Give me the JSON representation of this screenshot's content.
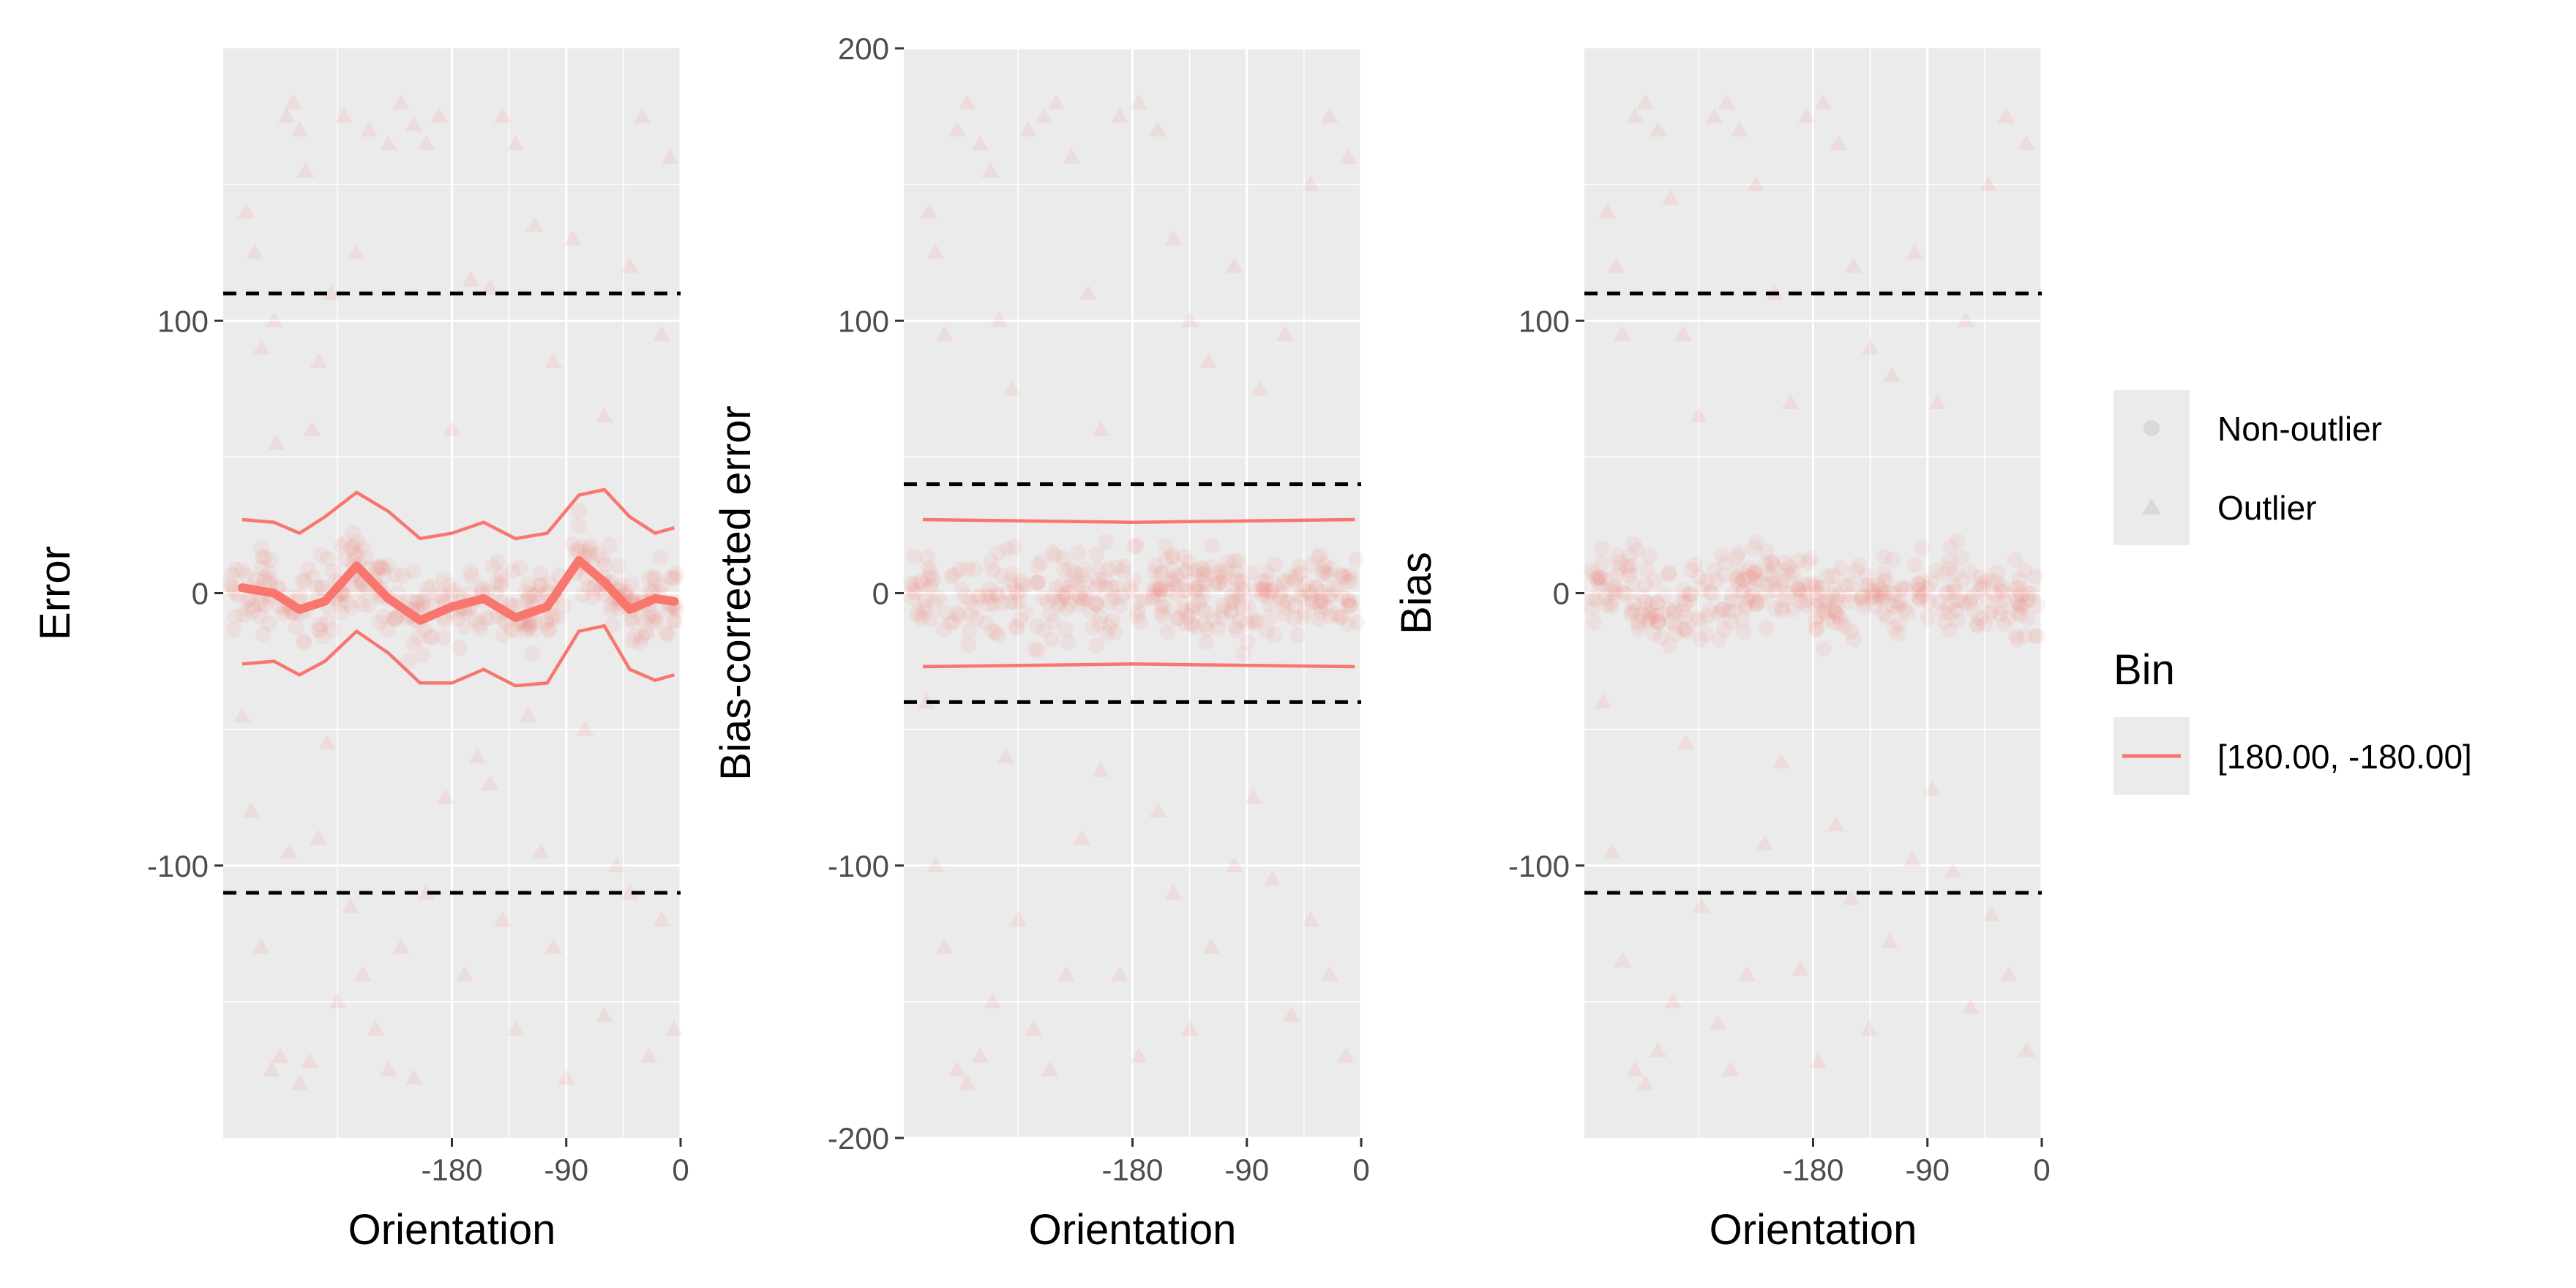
{
  "colors": {
    "panel_bg": "#ebebeb",
    "grid": "#ffffff",
    "series": "#f8766d",
    "outlier": "#d9d9d9",
    "dashed": "#000000",
    "tick_text": "#4d4d4d"
  },
  "legend": {
    "shape_entries": [
      {
        "label": "Non-outlier",
        "shape": "circle"
      },
      {
        "label": "Outlier",
        "shape": "triangle"
      }
    ],
    "bin_title": "Bin",
    "bin_entry": "[180.00, -180.00]"
  },
  "chart_data": [
    {
      "type": "scatter",
      "ylabel": "Error",
      "xlabel": "Orientation",
      "xlim": [
        -360,
        0
      ],
      "ylim": [
        -200,
        200
      ],
      "x_ticks": [
        -180,
        -90,
        0
      ],
      "x_tick_labels": [
        "-180",
        "-90",
        "0"
      ],
      "y_ticks": [
        -100,
        0,
        100
      ],
      "y_tick_labels": [
        "-100",
        "0",
        "100"
      ],
      "thresholds": [
        110,
        -110
      ],
      "center_line": [
        [
          -345,
          2
        ],
        [
          -320,
          0
        ],
        [
          -300,
          -6
        ],
        [
          -280,
          -3
        ],
        [
          -255,
          10
        ],
        [
          -230,
          -2
        ],
        [
          -205,
          -10
        ],
        [
          -180,
          -5
        ],
        [
          -155,
          -2
        ],
        [
          -130,
          -9
        ],
        [
          -105,
          -5
        ],
        [
          -80,
          12
        ],
        [
          -60,
          4
        ],
        [
          -40,
          -6
        ],
        [
          -20,
          -2
        ],
        [
          -5,
          -3
        ]
      ],
      "upper_band": [
        [
          -345,
          27
        ],
        [
          -320,
          26
        ],
        [
          -300,
          22
        ],
        [
          -280,
          28
        ],
        [
          -255,
          37
        ],
        [
          -230,
          30
        ],
        [
          -205,
          20
        ],
        [
          -180,
          22
        ],
        [
          -155,
          26
        ],
        [
          -130,
          20
        ],
        [
          -105,
          22
        ],
        [
          -80,
          36
        ],
        [
          -60,
          38
        ],
        [
          -40,
          28
        ],
        [
          -20,
          22
        ],
        [
          -5,
          24
        ]
      ],
      "lower_band": [
        [
          -345,
          -26
        ],
        [
          -320,
          -25
        ],
        [
          -300,
          -30
        ],
        [
          -280,
          -25
        ],
        [
          -255,
          -14
        ],
        [
          -230,
          -22
        ],
        [
          -205,
          -33
        ],
        [
          -180,
          -33
        ],
        [
          -155,
          -28
        ],
        [
          -130,
          -34
        ],
        [
          -105,
          -33
        ],
        [
          -80,
          -14
        ],
        [
          -60,
          -12
        ],
        [
          -40,
          -28
        ],
        [
          -20,
          -32
        ],
        [
          -5,
          -30
        ]
      ],
      "outliers": [
        [
          -342,
          140
        ],
        [
          -335,
          125
        ],
        [
          -330,
          90
        ],
        [
          -320,
          100
        ],
        [
          -318,
          55
        ],
        [
          -310,
          175
        ],
        [
          -305,
          180
        ],
        [
          -300,
          170
        ],
        [
          -295,
          155
        ],
        [
          -290,
          60
        ],
        [
          -285,
          85
        ],
        [
          -275,
          110
        ],
        [
          -265,
          175
        ],
        [
          -255,
          125
        ],
        [
          -245,
          170
        ],
        [
          -230,
          165
        ],
        [
          -220,
          180
        ],
        [
          -210,
          172
        ],
        [
          -200,
          165
        ],
        [
          -190,
          175
        ],
        [
          -180,
          60
        ],
        [
          -165,
          115
        ],
        [
          -150,
          112
        ],
        [
          -140,
          175
        ],
        [
          -130,
          165
        ],
        [
          -115,
          135
        ],
        [
          -100,
          85
        ],
        [
          -85,
          130
        ],
        [
          -60,
          65
        ],
        [
          -40,
          120
        ],
        [
          -30,
          175
        ],
        [
          -15,
          95
        ],
        [
          -8,
          160
        ],
        [
          -345,
          -45
        ],
        [
          -338,
          -80
        ],
        [
          -330,
          -130
        ],
        [
          -322,
          -175
        ],
        [
          -315,
          -170
        ],
        [
          -308,
          -95
        ],
        [
          -300,
          -180
        ],
        [
          -292,
          -172
        ],
        [
          -285,
          -90
        ],
        [
          -278,
          -55
        ],
        [
          -270,
          -150
        ],
        [
          -260,
          -115
        ],
        [
          -250,
          -140
        ],
        [
          -240,
          -160
        ],
        [
          -230,
          -175
        ],
        [
          -220,
          -130
        ],
        [
          -210,
          -178
        ],
        [
          -200,
          -110
        ],
        [
          -185,
          -75
        ],
        [
          -170,
          -140
        ],
        [
          -160,
          -60
        ],
        [
          -150,
          -70
        ],
        [
          -140,
          -120
        ],
        [
          -130,
          -160
        ],
        [
          -120,
          -45
        ],
        [
          -110,
          -95
        ],
        [
          -100,
          -130
        ],
        [
          -90,
          -178
        ],
        [
          -75,
          -50
        ],
        [
          -60,
          -155
        ],
        [
          -50,
          -100
        ],
        [
          -40,
          -110
        ],
        [
          -25,
          -170
        ],
        [
          -15,
          -120
        ],
        [
          -5,
          -160
        ]
      ]
    },
    {
      "type": "scatter",
      "ylabel": "Bias-corrected error",
      "xlabel": "Orientation",
      "xlim": [
        -360,
        0
      ],
      "ylim": [
        -200,
        200
      ],
      "x_ticks": [
        -180,
        -90,
        0
      ],
      "x_tick_labels": [
        "-180",
        "-90",
        "0"
      ],
      "y_ticks": [
        -200,
        -100,
        0,
        100,
        200
      ],
      "y_tick_labels": [
        "-200",
        "-100",
        "0",
        "100",
        "200"
      ],
      "thresholds": [
        40,
        -40
      ],
      "upper_band": [
        [
          -345,
          27
        ],
        [
          -180,
          26
        ],
        [
          -5,
          27
        ]
      ],
      "lower_band": [
        [
          -345,
          -27
        ],
        [
          -180,
          -26
        ],
        [
          -5,
          -27
        ]
      ],
      "outliers": [
        [
          -340,
          140
        ],
        [
          -335,
          125
        ],
        [
          -328,
          95
        ],
        [
          -318,
          170
        ],
        [
          -310,
          180
        ],
        [
          -300,
          165
        ],
        [
          -292,
          155
        ],
        [
          -285,
          100
        ],
        [
          -275,
          75
        ],
        [
          -262,
          170
        ],
        [
          -250,
          175
        ],
        [
          -240,
          180
        ],
        [
          -228,
          160
        ],
        [
          -215,
          110
        ],
        [
          -205,
          60
        ],
        [
          -190,
          175
        ],
        [
          -175,
          180
        ],
        [
          -160,
          170
        ],
        [
          -148,
          130
        ],
        [
          -135,
          100
        ],
        [
          -120,
          85
        ],
        [
          -100,
          120
        ],
        [
          -80,
          75
        ],
        [
          -60,
          95
        ],
        [
          -40,
          150
        ],
        [
          -25,
          175
        ],
        [
          -10,
          160
        ],
        [
          -342,
          -40
        ],
        [
          -335,
          -100
        ],
        [
          -328,
          -130
        ],
        [
          -318,
          -175
        ],
        [
          -310,
          -180
        ],
        [
          -300,
          -170
        ],
        [
          -290,
          -150
        ],
        [
          -280,
          -60
        ],
        [
          -270,
          -120
        ],
        [
          -258,
          -160
        ],
        [
          -245,
          -175
        ],
        [
          -232,
          -140
        ],
        [
          -220,
          -90
        ],
        [
          -205,
          -65
        ],
        [
          -190,
          -140
        ],
        [
          -175,
          -170
        ],
        [
          -160,
          -80
        ],
        [
          -148,
          -110
        ],
        [
          -135,
          -160
        ],
        [
          -118,
          -130
        ],
        [
          -100,
          -100
        ],
        [
          -85,
          -75
        ],
        [
          -70,
          -105
        ],
        [
          -55,
          -155
        ],
        [
          -40,
          -120
        ],
        [
          -25,
          -140
        ],
        [
          -12,
          -170
        ]
      ]
    },
    {
      "type": "scatter",
      "ylabel": "Bias",
      "xlabel": "Orientation",
      "xlim": [
        -360,
        0
      ],
      "ylim": [
        -200,
        200
      ],
      "x_ticks": [
        -180,
        -90,
        0
      ],
      "x_tick_labels": [
        "-180",
        "-90",
        "0"
      ],
      "y_ticks": [
        -100,
        0,
        100
      ],
      "y_tick_labels": [
        "-100",
        "0",
        "100"
      ],
      "thresholds": [
        110,
        -110
      ],
      "outliers": [
        [
          -342,
          140
        ],
        [
          -335,
          120
        ],
        [
          -330,
          95
        ],
        [
          -320,
          175
        ],
        [
          -312,
          180
        ],
        [
          -302,
          170
        ],
        [
          -292,
          145
        ],
        [
          -282,
          95
        ],
        [
          -270,
          65
        ],
        [
          -258,
          175
        ],
        [
          -248,
          180
        ],
        [
          -238,
          170
        ],
        [
          -225,
          150
        ],
        [
          -210,
          110
        ],
        [
          -198,
          70
        ],
        [
          -185,
          175
        ],
        [
          -172,
          180
        ],
        [
          -160,
          165
        ],
        [
          -148,
          120
        ],
        [
          -135,
          90
        ],
        [
          -118,
          80
        ],
        [
          -100,
          125
        ],
        [
          -82,
          70
        ],
        [
          -60,
          100
        ],
        [
          -42,
          150
        ],
        [
          -28,
          175
        ],
        [
          -12,
          165
        ],
        [
          -345,
          -40
        ],
        [
          -338,
          -95
        ],
        [
          -330,
          -135
        ],
        [
          -320,
          -175
        ],
        [
          -312,
          -180
        ],
        [
          -302,
          -168
        ],
        [
          -290,
          -150
        ],
        [
          -280,
          -55
        ],
        [
          -268,
          -115
        ],
        [
          -255,
          -158
        ],
        [
          -245,
          -175
        ],
        [
          -232,
          -140
        ],
        [
          -218,
          -92
        ],
        [
          -205,
          -62
        ],
        [
          -190,
          -138
        ],
        [
          -176,
          -172
        ],
        [
          -162,
          -85
        ],
        [
          -150,
          -112
        ],
        [
          -136,
          -160
        ],
        [
          -120,
          -128
        ],
        [
          -102,
          -98
        ],
        [
          -86,
          -72
        ],
        [
          -70,
          -102
        ],
        [
          -56,
          -152
        ],
        [
          -40,
          -118
        ],
        [
          -26,
          -140
        ],
        [
          -12,
          -168
        ]
      ]
    }
  ]
}
